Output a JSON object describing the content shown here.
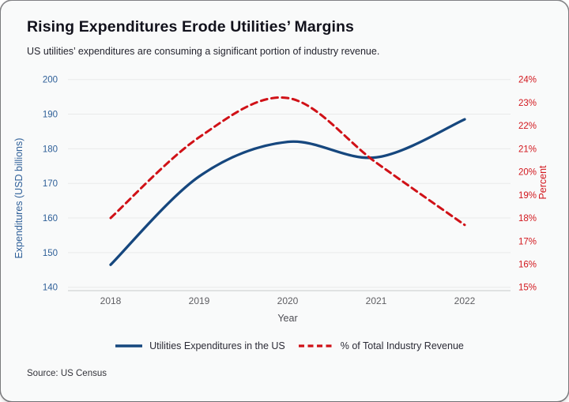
{
  "card": {
    "title": "Rising Expenditures Erode Utilities’ Margins",
    "subtitle": "US utilities’ expenditures are consuming a significant portion of industry revenue.",
    "source": "Source: US Census"
  },
  "chart_data": {
    "type": "line",
    "x": [
      2018,
      2019,
      2020,
      2021,
      2022
    ],
    "series": [
      {
        "name": "Utilities Expenditures in the US",
        "axis": "left",
        "values": [
          146.5,
          172,
          182,
          177.5,
          188.5
        ],
        "color": "#16477e",
        "style": "solid"
      },
      {
        "name": "% of Total Industry Revenue",
        "axis": "right",
        "values": [
          18.0,
          21.5,
          23.2,
          20.4,
          17.7
        ],
        "color": "#d01117",
        "style": "dashed"
      }
    ],
    "xlabel": "Year",
    "ylabel_left": "Expenditures (USD billions)",
    "ylabel_right": "Percent",
    "yleft_ticks": [
      140,
      150,
      160,
      170,
      180,
      190,
      200
    ],
    "yright_ticks": [
      "15%",
      "16%",
      "17%",
      "18%",
      "19%",
      "20%",
      "21%",
      "22%",
      "23%",
      "24%"
    ],
    "yleft_range": [
      140,
      200
    ],
    "yright_range": [
      15,
      24
    ],
    "grid": "horizontal",
    "legend_position": "bottom",
    "colors": {
      "left_axis_text": "#2e5f98",
      "right_axis_text": "#d2171d",
      "x_axis_text": "#5e5e62",
      "gridline": "#e9eaea",
      "baseline": "#d2d3d4"
    }
  }
}
